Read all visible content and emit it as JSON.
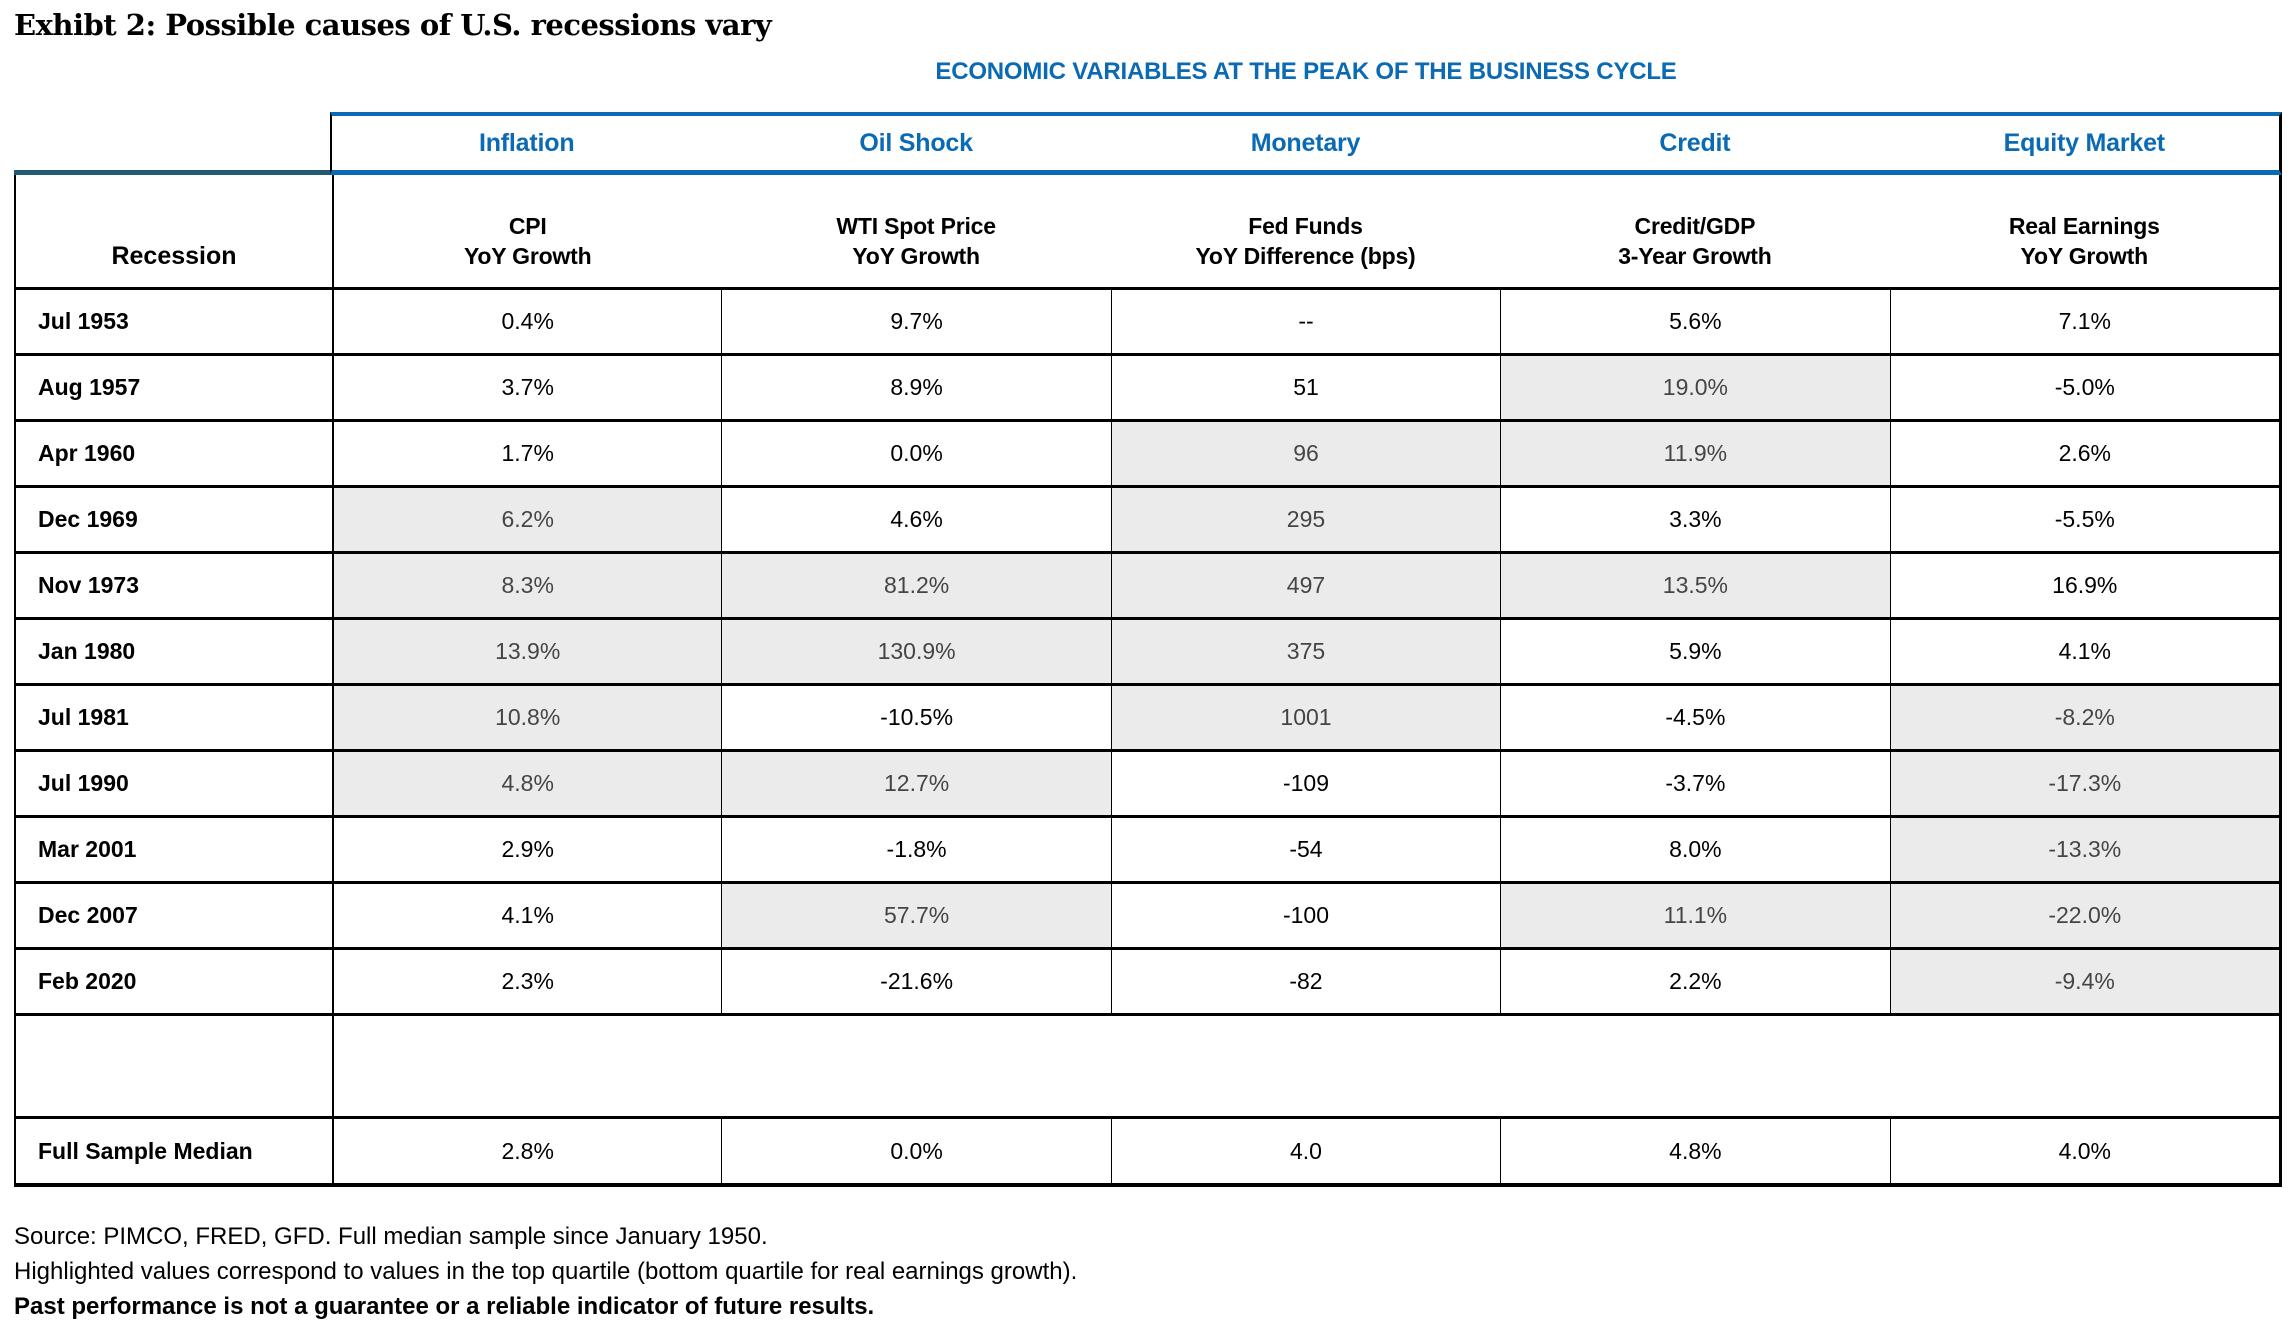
{
  "title": "Exhibt 2: Possible causes of U.S. recessions vary",
  "band_title": "ECONOMIC VARIABLES AT THE PEAK OF THE BUSINESS CYCLE",
  "recession_header": "Recession",
  "colors": {
    "header_blue": "#0A6AB4",
    "recession_teal": "#1E5B72",
    "highlight_gray": "#EBEBEB"
  },
  "columns": [
    {
      "group": "Inflation",
      "sub1": "CPI",
      "sub2": "YoY Growth"
    },
    {
      "group": "Oil Shock",
      "sub1": "WTI Spot Price",
      "sub2": "YoY Growth"
    },
    {
      "group": "Monetary",
      "sub1": "Fed Funds",
      "sub2": "YoY Difference (bps)"
    },
    {
      "group": "Credit",
      "sub1": "Credit/GDP",
      "sub2": "3-Year Growth"
    },
    {
      "group": "Equity Market",
      "sub1": "Real Earnings",
      "sub2": "YoY Growth"
    }
  ],
  "rows": [
    {
      "label": "Jul 1953",
      "values": [
        "0.4%",
        "9.7%",
        "--",
        "5.6%",
        "7.1%"
      ],
      "highlight": [
        false,
        false,
        false,
        false,
        false
      ]
    },
    {
      "label": "Aug 1957",
      "values": [
        "3.7%",
        "8.9%",
        "51",
        "19.0%",
        "-5.0%"
      ],
      "highlight": [
        false,
        false,
        false,
        true,
        false
      ]
    },
    {
      "label": "Apr 1960",
      "values": [
        "1.7%",
        "0.0%",
        "96",
        "11.9%",
        "2.6%"
      ],
      "highlight": [
        false,
        false,
        true,
        true,
        false
      ]
    },
    {
      "label": "Dec 1969",
      "values": [
        "6.2%",
        "4.6%",
        "295",
        "3.3%",
        "-5.5%"
      ],
      "highlight": [
        true,
        false,
        true,
        false,
        false
      ]
    },
    {
      "label": "Nov 1973",
      "values": [
        "8.3%",
        "81.2%",
        "497",
        "13.5%",
        "16.9%"
      ],
      "highlight": [
        true,
        true,
        true,
        true,
        false
      ]
    },
    {
      "label": "Jan 1980",
      "values": [
        "13.9%",
        "130.9%",
        "375",
        "5.9%",
        "4.1%"
      ],
      "highlight": [
        true,
        true,
        true,
        false,
        false
      ]
    },
    {
      "label": "Jul 1981",
      "values": [
        "10.8%",
        "-10.5%",
        "1001",
        "-4.5%",
        "-8.2%"
      ],
      "highlight": [
        true,
        false,
        true,
        false,
        true
      ]
    },
    {
      "label": "Jul 1990",
      "values": [
        "4.8%",
        "12.7%",
        "-109",
        "-3.7%",
        "-17.3%"
      ],
      "highlight": [
        true,
        true,
        false,
        false,
        true
      ]
    },
    {
      "label": "Mar 2001",
      "values": [
        "2.9%",
        "-1.8%",
        "-54",
        "8.0%",
        "-13.3%"
      ],
      "highlight": [
        false,
        false,
        false,
        false,
        true
      ]
    },
    {
      "label": "Dec 2007",
      "values": [
        "4.1%",
        "57.7%",
        "-100",
        "11.1%",
        "-22.0%"
      ],
      "highlight": [
        false,
        true,
        false,
        true,
        true
      ]
    },
    {
      "label": "Feb 2020",
      "values": [
        "2.3%",
        "-21.6%",
        "-82",
        "2.2%",
        "-9.4%"
      ],
      "highlight": [
        false,
        false,
        false,
        false,
        true
      ],
      "spacer_after": true
    },
    {
      "label": "Full Sample Median",
      "values": [
        "2.8%",
        "0.0%",
        "4.0",
        "4.8%",
        "4.0%"
      ],
      "highlight": [
        false,
        false,
        false,
        false,
        false
      ],
      "median": true
    }
  ],
  "footnotes": {
    "source": "Source: PIMCO, FRED, GFD. Full median sample since January 1950.",
    "highlight_note": "Highlighted values correspond to values in the top quartile (bottom quartile for real earnings growth).",
    "disclaimer": "Past performance is not a guarantee or a reliable indicator of future results."
  }
}
